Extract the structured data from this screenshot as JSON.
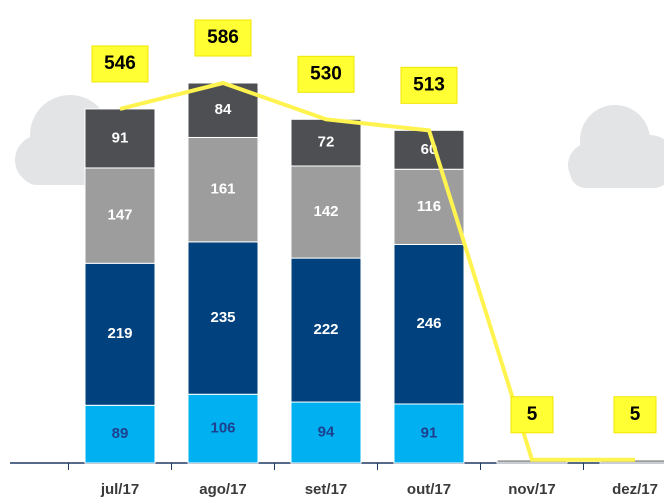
{
  "chart_data": {
    "type": "stacked-bar",
    "categories": [
      "jul/17",
      "ago/17",
      "set/17",
      "out/17",
      "nov/17",
      "dez/17"
    ],
    "series": [
      {
        "color": "#00b0f0",
        "label_color": "#1f3f8f",
        "values": [
          89,
          106,
          94,
          91,
          null,
          null
        ]
      },
      {
        "color": "#00417e",
        "label_color": "#ffffff",
        "values": [
          219,
          235,
          222,
          246,
          null,
          null
        ]
      },
      {
        "color": "#9d9d9d",
        "label_color": "#ffffff",
        "values": [
          147,
          161,
          142,
          116,
          5,
          5
        ]
      },
      {
        "color": "#4d4f53",
        "label_color": "#ffffff",
        "values": [
          91,
          84,
          72,
          60,
          null,
          null
        ]
      }
    ],
    "totals": {
      "color": "#fff44f",
      "values": [
        546,
        586,
        530,
        513,
        5,
        5
      ]
    }
  }
}
